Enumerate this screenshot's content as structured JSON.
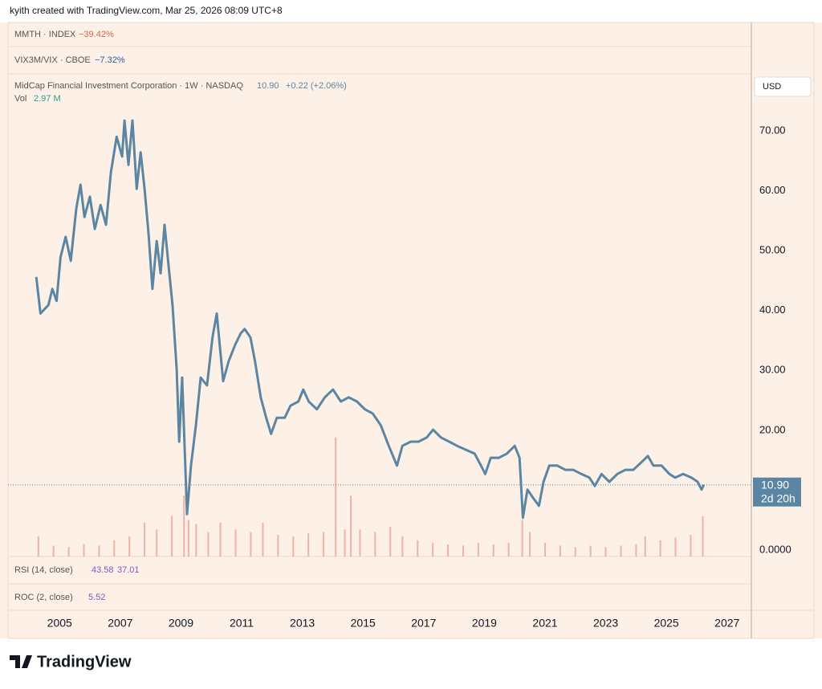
{
  "page": {
    "credit": "kyith created with TradingView.com, Mar 25, 2026 08:09 UTC+8",
    "panes": [
      {
        "name": "MMTH · INDEX",
        "change": "−39.42%"
      },
      {
        "name": "VIX3M/VIX · CBOE",
        "change": "−7.32%"
      }
    ],
    "symbol": "MidCap Financial Investment Corporation · 1W · NASDAQ",
    "change": "+0.22 (+2.06%)",
    "vol_name": "Vol",
    "vol_value": "2.97 M",
    "currency": "USD",
    "countdown": "2d 20h",
    "rsi": {
      "name": "RSI (14, close)",
      "v1": "43.58",
      "v2": "37.01"
    },
    "roc": {
      "name": "ROC (2, close)",
      "v1": "5.52"
    },
    "logo": "TradingView"
  },
  "chart_data": {
    "type": "line",
    "xlim": [
      2003.3,
      2027.8
    ],
    "xticks": [
      2005,
      2007,
      2009,
      2011,
      2013,
      2015,
      2017,
      2019,
      2021,
      2023,
      2025,
      2027
    ],
    "ylim": [
      -1.07,
      79.36
    ],
    "yticks": [
      {
        "value": 0,
        "label": "0.0000"
      },
      {
        "value": 20,
        "label": "20.00"
      },
      {
        "value": 30,
        "label": "30.00"
      },
      {
        "value": 40,
        "label": "40.00"
      },
      {
        "value": 50,
        "label": "50.00"
      },
      {
        "value": 60,
        "label": "60.00"
      },
      {
        "value": 70,
        "label": "70.00"
      }
    ],
    "y2lim": [
      0,
      35.6
    ],
    "last": {
      "value": 10.9,
      "label": "10.90"
    },
    "series": [
      {
        "name": "MidCap Financial Investment Corporation",
        "color": "#5b86a3",
        "x": [
          2004.23,
          2004.37,
          2004.63,
          2004.76,
          2004.9,
          2005.03,
          2005.2,
          2005.37,
          2005.55,
          2005.69,
          2005.82,
          2006.0,
          2006.16,
          2006.35,
          2006.53,
          2006.69,
          2006.88,
          2007.06,
          2007.14,
          2007.27,
          2007.4,
          2007.54,
          2007.67,
          2007.8,
          2007.93,
          2008.06,
          2008.2,
          2008.33,
          2008.46,
          2008.59,
          2008.72,
          2008.86,
          2008.94,
          2009.04,
          2009.2,
          2009.33,
          2009.49,
          2009.65,
          2009.86,
          2010.04,
          2010.18,
          2010.39,
          2010.57,
          2010.78,
          2010.97,
          2011.1,
          2011.29,
          2011.44,
          2011.63,
          2011.81,
          2011.97,
          2012.16,
          2012.42,
          2012.61,
          2012.87,
          2013.03,
          2013.21,
          2013.48,
          2013.74,
          2014.01,
          2014.27,
          2014.53,
          2014.8,
          2015.06,
          2015.32,
          2015.59,
          2015.85,
          2016.12,
          2016.3,
          2016.57,
          2016.83,
          2017.1,
          2017.31,
          2017.57,
          2017.84,
          2018.1,
          2018.37,
          2018.68,
          2018.89,
          2019.03,
          2019.21,
          2019.48,
          2019.74,
          2020.0,
          2020.16,
          2020.27,
          2020.42,
          2020.61,
          2020.8,
          2020.95,
          2021.14,
          2021.4,
          2021.67,
          2021.93,
          2022.2,
          2022.46,
          2022.64,
          2022.86,
          2023.12,
          2023.38,
          2023.65,
          2023.91,
          2024.18,
          2024.39,
          2024.57,
          2024.84,
          2025.1,
          2025.29,
          2025.55,
          2025.82,
          2026.03,
          2026.16,
          2026.23
        ],
        "values": [
          45.6,
          39.5,
          40.9,
          43.6,
          41.6,
          48.9,
          52.3,
          48.3,
          57,
          61,
          55.6,
          59,
          53.6,
          57.6,
          54.3,
          63,
          69,
          65.7,
          71.7,
          64.3,
          71.7,
          60.3,
          66.4,
          60.3,
          52.9,
          43.6,
          51.6,
          46.2,
          54.3,
          47.6,
          40.9,
          30.2,
          18.1,
          28.8,
          6.0,
          14.1,
          20.8,
          28.8,
          27.5,
          35.5,
          39.5,
          28.2,
          31.5,
          34.2,
          36.2,
          36.9,
          35.5,
          31.5,
          25.5,
          22.1,
          19.4,
          22.1,
          22.1,
          24.1,
          24.8,
          26.8,
          24.8,
          23.5,
          25.5,
          26.8,
          24.8,
          25.5,
          24.8,
          23.5,
          22.8,
          20.8,
          17.4,
          14.1,
          17.4,
          18.1,
          18.1,
          18.8,
          20.1,
          18.8,
          18.1,
          17.4,
          16.8,
          16.1,
          14.1,
          12.7,
          15.4,
          15.4,
          16.1,
          17.4,
          15.4,
          5.4,
          10.1,
          8.7,
          7.4,
          11.4,
          14.1,
          14.1,
          13.4,
          13.4,
          12.7,
          12.1,
          10.7,
          12.7,
          11.4,
          12.7,
          13.4,
          13.4,
          14.7,
          15.7,
          14.1,
          14.1,
          12.7,
          12.1,
          12.7,
          12.1,
          11.4,
          10.1,
          10.9
        ]
      },
      {
        "name": "Vol",
        "axis": "y2",
        "type": "bar",
        "color": "#eeb2a8",
        "x": [
          2004.3,
          2004.8,
          2005.3,
          2005.8,
          2006.3,
          2006.8,
          2007.3,
          2007.8,
          2008.2,
          2008.7,
          2009.1,
          2009.25,
          2009.5,
          2009.9,
          2010.3,
          2010.8,
          2011.3,
          2011.7,
          2012.2,
          2012.7,
          2013.2,
          2013.7,
          2014.1,
          2014.4,
          2014.6,
          2014.9,
          2015.4,
          2015.9,
          2016.3,
          2016.8,
          2017.3,
          2017.8,
          2018.3,
          2018.8,
          2019.3,
          2019.8,
          2020.25,
          2020.5,
          2021.0,
          2021.5,
          2022.0,
          2022.5,
          2023.0,
          2023.5,
          2024.0,
          2024.3,
          2024.8,
          2025.3,
          2025.8,
          2026.2
        ],
        "values": [
          1.5,
          0.8,
          0.7,
          0.9,
          0.8,
          1.2,
          1.5,
          2.5,
          2.0,
          3.0,
          4.5,
          2.7,
          2.4,
          1.8,
          2.5,
          2.0,
          1.8,
          2.5,
          1.6,
          1.5,
          1.7,
          1.8,
          8.8,
          2.0,
          4.5,
          2.0,
          1.8,
          2.2,
          1.5,
          1.2,
          1.0,
          0.9,
          0.8,
          1.0,
          0.9,
          1.0,
          2.7,
          1.8,
          1.0,
          0.8,
          0.7,
          0.8,
          0.7,
          0.8,
          0.9,
          1.5,
          1.2,
          1.4,
          1.6,
          2.97
        ]
      }
    ]
  }
}
